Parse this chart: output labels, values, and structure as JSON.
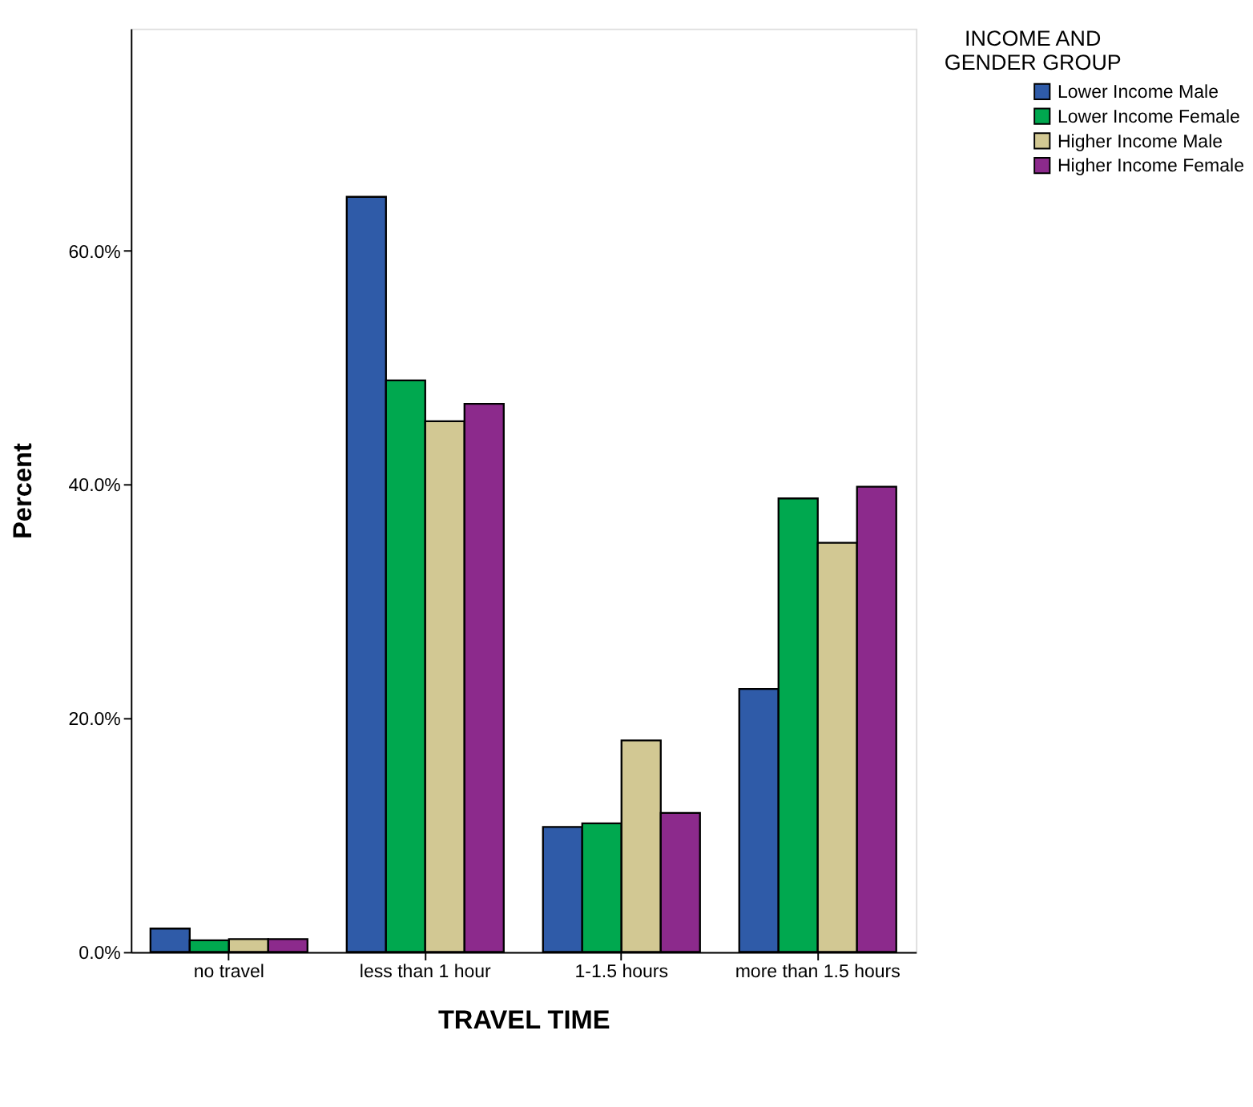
{
  "chart_data": {
    "type": "bar",
    "xlabel": "TRAVEL TIME",
    "ylabel": "Percent",
    "legend_title": "INCOME AND GENDER GROUP",
    "categories": [
      "no travel",
      "less than 1 hour",
      "1-1.5 hours",
      "more than 1.5 hours"
    ],
    "series": [
      {
        "name": "Lower Income Male",
        "color": "#2f5ba8",
        "values": [
          2.0,
          64.6,
          10.7,
          22.5
        ]
      },
      {
        "name": "Lower Income Female",
        "color": "#00a84f",
        "values": [
          1.0,
          48.9,
          11.0,
          38.8
        ]
      },
      {
        "name": "Higher Income Male",
        "color": "#d2c893",
        "values": [
          1.1,
          45.4,
          18.1,
          35.0
        ]
      },
      {
        "name": "Higher Income Female",
        "color": "#8c2a8c",
        "values": [
          1.1,
          46.9,
          11.9,
          39.8
        ]
      }
    ],
    "ylim": [
      0,
      79
    ],
    "yticks": [
      {
        "value": 0,
        "label": "0.0%"
      },
      {
        "value": 20,
        "label": "20.0%"
      },
      {
        "value": 40,
        "label": "40.0%"
      },
      {
        "value": 60,
        "label": "60.0%"
      }
    ],
    "grid": false,
    "legend": "top right"
  }
}
